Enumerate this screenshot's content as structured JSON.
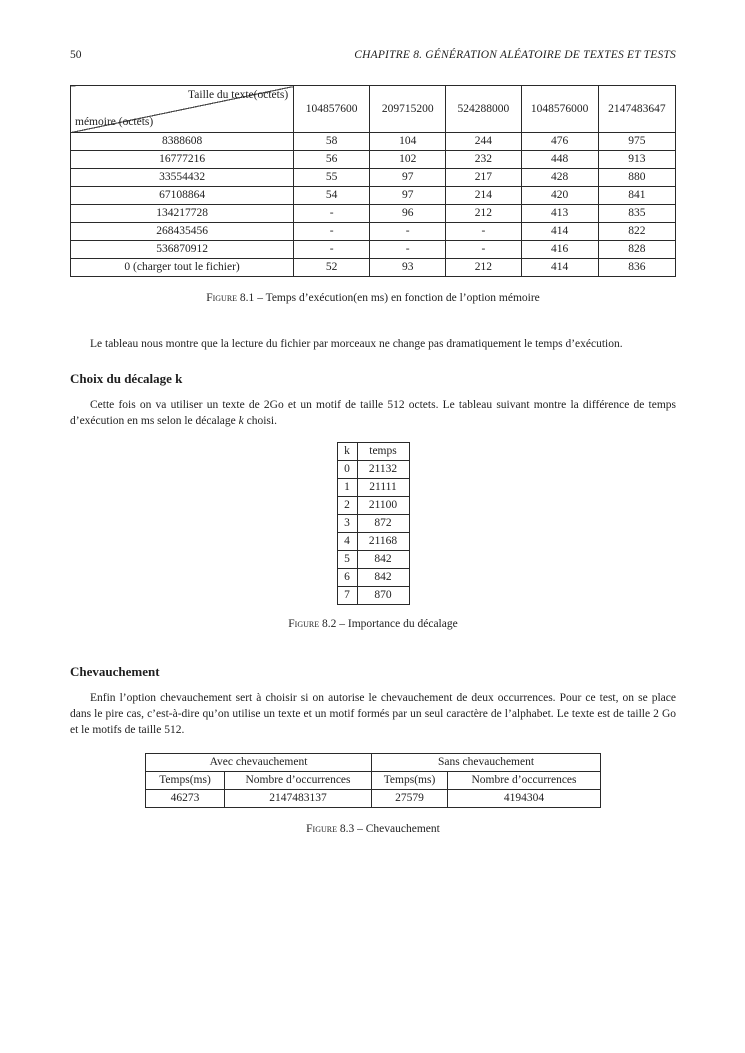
{
  "page_header": {
    "page_number": "50",
    "chapter_title": "CHAPITRE 8.  GÉNÉRATION ALÉATOIRE DE TEXTES ET TESTS"
  },
  "figure1": {
    "table": {
      "corner_top_right": "Taille du texte(octets)",
      "corner_bottom_left": "mémoire (octets)",
      "col_headers": [
        "104857600",
        "209715200",
        "524288000",
        "1048576000",
        "2147483647"
      ],
      "rows": [
        [
          "8388608",
          "58",
          "104",
          "244",
          "476",
          "975"
        ],
        [
          "16777216",
          "56",
          "102",
          "232",
          "448",
          "913"
        ],
        [
          "33554432",
          "55",
          "97",
          "217",
          "428",
          "880"
        ],
        [
          "67108864",
          "54",
          "97",
          "214",
          "420",
          "841"
        ],
        [
          "134217728",
          "-",
          "96",
          "212",
          "413",
          "835"
        ],
        [
          "268435456",
          "-",
          "-",
          "-",
          "414",
          "822"
        ],
        [
          "536870912",
          "-",
          "-",
          "-",
          "416",
          "828"
        ],
        [
          "0 (charger tout le fichier)",
          "52",
          "93",
          "212",
          "414",
          "836"
        ]
      ]
    },
    "caption_label": "Figure 8.1",
    "caption_text": "– Temps d’exécution(en ms) en fonction de l’option mémoire"
  },
  "paragraph1": "Le tableau nous montre que la lecture du fichier par morceaux ne change pas dramatiquement le temps d’exécution.",
  "section1": {
    "heading": "Choix du décalage k",
    "para_before_k": "Cette fois on va utiliser un texte de 2Go et un motif de taille 512 octets. Le tableau suivant montre la différence de temps d’exécution en ms selon le décalage ",
    "para_k": "k",
    "para_after_k": " choisi."
  },
  "figure2": {
    "table": {
      "col_headers": [
        "k",
        "temps"
      ],
      "rows": [
        [
          "0",
          "21132"
        ],
        [
          "1",
          "21111"
        ],
        [
          "2",
          "21100"
        ],
        [
          "3",
          "872"
        ],
        [
          "4",
          "21168"
        ],
        [
          "5",
          "842"
        ],
        [
          "6",
          "842"
        ],
        [
          "7",
          "870"
        ]
      ]
    },
    "caption_label": "Figure 8.2",
    "caption_text": "– Importance du décalage"
  },
  "section2": {
    "heading": "Chevauchement",
    "paragraph": "Enfin l’option chevauchement sert à choisir si on autorise le chevauchement de deux occurrences. Pour ce test, on se place dans le pire cas, c’est-à-dire qu’on utilise un texte et un motif formés par un seul caractère de l’alphabet. Le texte est de taille 2 Go et le motifs de taille 512."
  },
  "figure3": {
    "table": {
      "group_headers": [
        "Avec chevauchement",
        "Sans chevauchement"
      ],
      "col_headers": [
        "Temps(ms)",
        "Nombre d’occurrences",
        "Temps(ms)",
        "Nombre d’occurrences"
      ],
      "rows": [
        [
          "46273",
          "2147483137",
          "27579",
          "4194304"
        ]
      ]
    },
    "caption_label": "Figure 8.3",
    "caption_text": "– Chevauchement"
  }
}
